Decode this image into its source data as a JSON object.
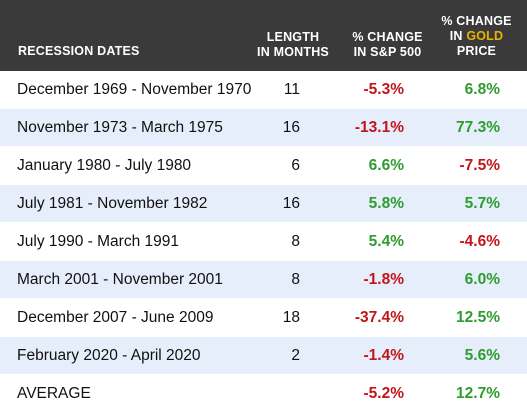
{
  "header": {
    "dates": "RECESSION DATES",
    "length_line1": "LENGTH",
    "length_line2": "IN MONTHS",
    "sp_line1": "% CHANGE",
    "sp_line2": "IN S&P 500",
    "gold_line1": "% CHANGE",
    "gold_line2_prefix": "IN ",
    "gold_line2_word": "GOLD",
    "gold_line3": "PRICE"
  },
  "colors": {
    "header_bg": "#3a3a3a",
    "alt_row_bg": "#e6eefb",
    "negative": "#c4141b",
    "positive": "#2e9c2e",
    "gold_word": "#e8b400"
  },
  "rows": [
    {
      "dates": "December 1969 - November 1970",
      "length": "11",
      "sp": "-5.3%",
      "gold": "6.8%"
    },
    {
      "dates": "November 1973 - March 1975",
      "length": "16",
      "sp": "-13.1%",
      "gold": "77.3%"
    },
    {
      "dates": "January 1980 - July 1980",
      "length": "6",
      "sp": "6.6%",
      "gold": "-7.5%"
    },
    {
      "dates": "July 1981 - November 1982",
      "length": "16",
      "sp": "5.8%",
      "gold": "5.7%"
    },
    {
      "dates": "July 1990 - March 1991",
      "length": "8",
      "sp": "5.4%",
      "gold": "-4.6%"
    },
    {
      "dates": "March 2001 - November 2001",
      "length": "8",
      "sp": "-1.8%",
      "gold": "6.0%"
    },
    {
      "dates": "December 2007 - June 2009",
      "length": "18",
      "sp": "-37.4%",
      "gold": "12.5%"
    },
    {
      "dates": "February 2020 - April 2020",
      "length": "2",
      "sp": "-1.4%",
      "gold": "5.6%"
    }
  ],
  "average": {
    "label": "AVERAGE",
    "sp": "-5.2%",
    "gold": "12.7%"
  }
}
